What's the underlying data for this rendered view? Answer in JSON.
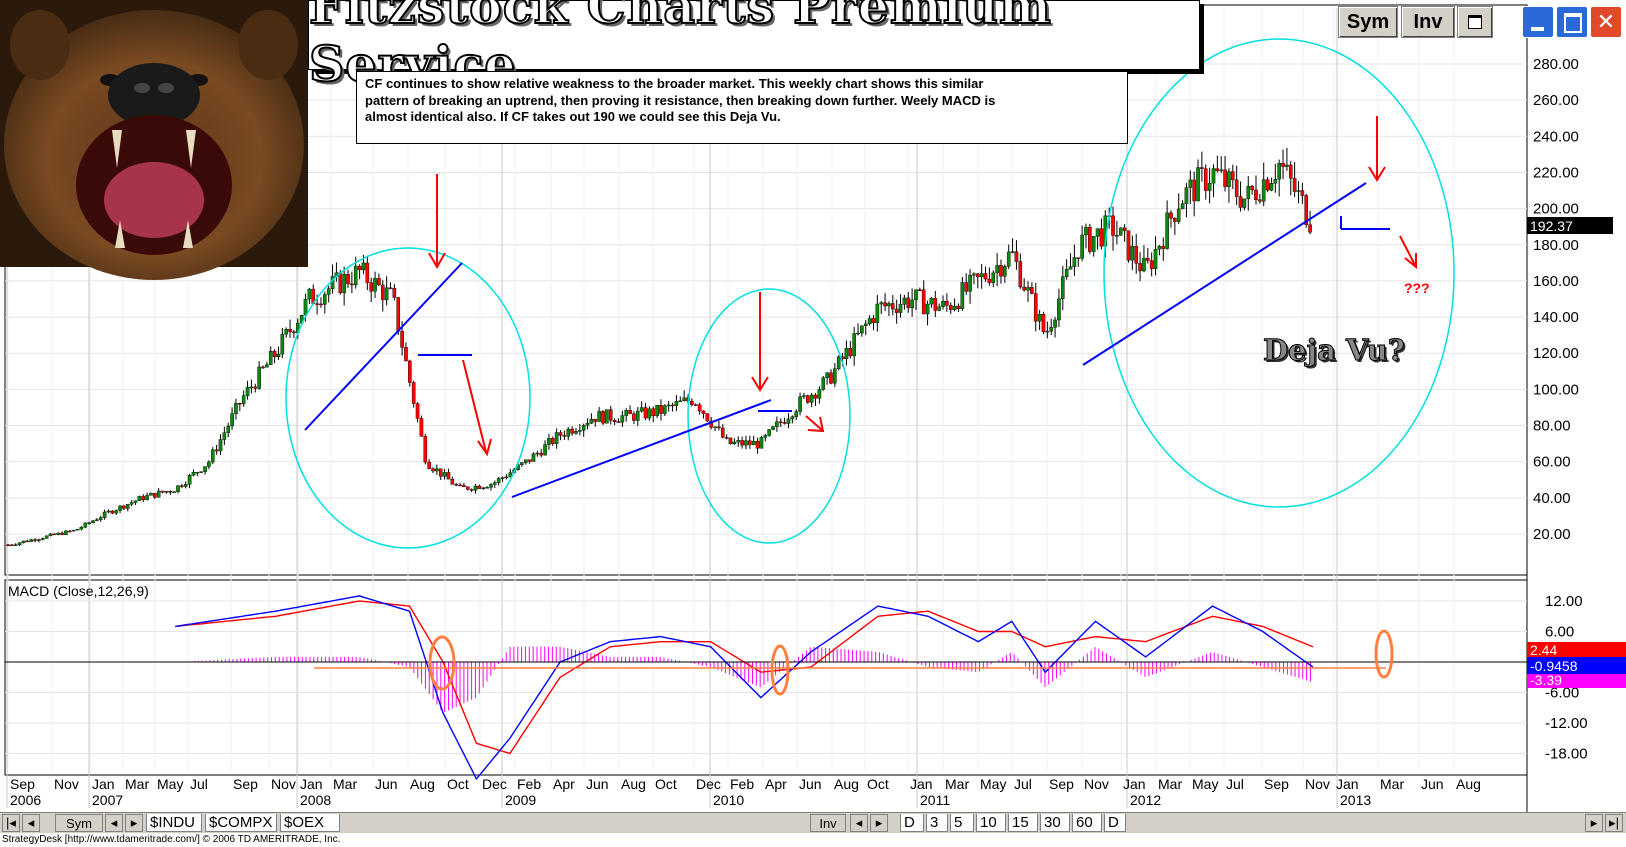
{
  "banner": {
    "title": "Fitzstock Charts Premium Service"
  },
  "note": {
    "lines": [
      "CF continues to show relative weakness to the broader market.   This weekly chart shows this similar",
      "pattern of breaking an uptrend, then proving it resistance, then breaking down further.   Weely MACD is",
      "almost identical also.    If CF takes out 190 we could see this Deja Vu."
    ]
  },
  "annotations": {
    "deja_vu": "Deja Vu?",
    "question": "???"
  },
  "toolbar": {
    "sym_label": "Sym",
    "inv_label": "Inv"
  },
  "image": {
    "subject": "roaring-bear"
  },
  "colors": {
    "bullish": "#0a8a0a",
    "bearish": "#ff0000",
    "trendline": "#0000ff",
    "circle": "#00e0e0",
    "arrow": "#ff0000",
    "macd_line": "#0000ff",
    "signal_line": "#ff0000",
    "histogram": "#ff00ff",
    "price_box": "#000000"
  },
  "chart_data": [
    {
      "type": "line",
      "name": "price",
      "title": "",
      "ylim": [
        10,
        295
      ],
      "yticks": [
        "280.00",
        "260.00",
        "240.00",
        "220.00",
        "200.00",
        "180.00",
        "160.00",
        "140.00",
        "120.00",
        "100.00",
        "80.00",
        "60.00",
        "40.00",
        "20.00"
      ],
      "last_price": "192.37",
      "x_month_labels": [
        "Sep",
        "Nov",
        "Jan",
        "Mar",
        "May",
        "Jul",
        "Sep",
        "Nov",
        "Jan",
        "Mar",
        "Jun",
        "Aug",
        "Oct",
        "Dec",
        "Feb",
        "Apr",
        "Jun",
        "Aug",
        "Oct",
        "Dec",
        "Feb",
        "Apr",
        "Jun",
        "Aug",
        "Oct",
        "Jan",
        "Mar",
        "May",
        "Jul",
        "Sep",
        "Nov",
        "Jan",
        "Mar",
        "May",
        "Jul",
        "Sep",
        "Nov",
        "Jan",
        "Mar",
        "Jun",
        "Aug",
        "Oct"
      ],
      "x_year_labels": [
        "2006",
        "2007",
        "2008",
        "2009",
        "2010",
        "2011",
        "2012",
        "2013"
      ],
      "x": [
        "2006-09",
        "2006-11",
        "2007-01",
        "2007-03",
        "2007-05",
        "2007-07",
        "2007-09",
        "2007-11",
        "2008-01",
        "2008-03",
        "2008-06",
        "2008-08",
        "2008-10",
        "2008-12",
        "2009-02",
        "2009-04",
        "2009-06",
        "2009-08",
        "2009-10",
        "2009-12",
        "2010-02",
        "2010-04",
        "2010-06",
        "2010-08",
        "2010-10",
        "2011-01",
        "2011-03",
        "2011-05",
        "2011-07",
        "2011-09",
        "2011-11",
        "2012-01",
        "2012-03",
        "2012-05",
        "2012-07",
        "2012-09",
        "2012-11",
        "2013-01",
        "2013-03"
      ],
      "values": [
        14,
        18,
        22,
        32,
        40,
        45,
        60,
        95,
        120,
        150,
        165,
        150,
        60,
        45,
        48,
        60,
        75,
        85,
        85,
        88,
        95,
        70,
        70,
        90,
        105,
        145,
        150,
        145,
        160,
        175,
        130,
        180,
        190,
        165,
        205,
        220,
        205,
        225,
        192
      ]
    },
    {
      "type": "line",
      "name": "MACD",
      "title": "MACD (Close,12,26,9)",
      "ylim": [
        -23,
        14
      ],
      "yticks": [
        "12.00",
        "6.00",
        "-6.00",
        "-12.00",
        "-18.00"
      ],
      "readouts": [
        "2.44",
        "-0.9458",
        "-3.39"
      ],
      "x": [
        "2007-07",
        "2008-01",
        "2008-06",
        "2008-09",
        "2008-11",
        "2009-01",
        "2009-03",
        "2009-06",
        "2009-09",
        "2009-12",
        "2010-03",
        "2010-06",
        "2010-09",
        "2011-01",
        "2011-04",
        "2011-07",
        "2011-09",
        "2011-11",
        "2012-02",
        "2012-05",
        "2012-09",
        "2012-12",
        "2013-03"
      ],
      "series": [
        {
          "name": "MACD",
          "values": [
            7,
            10,
            13,
            10,
            -10,
            -23,
            -15,
            0,
            4,
            5,
            3,
            -7,
            2,
            11,
            9,
            4,
            8,
            -2,
            8,
            1,
            11,
            6,
            -1
          ]
        },
        {
          "name": "Signal",
          "values": [
            7,
            9,
            12,
            11,
            0,
            -16,
            -18,
            -3,
            3,
            4,
            4,
            -2,
            -1,
            9,
            10,
            6,
            6,
            3,
            5,
            4,
            9,
            7,
            3
          ]
        },
        {
          "name": "Histogram",
          "values": [
            0,
            1,
            1,
            -1,
            -10,
            -7,
            3,
            3,
            1,
            1,
            -1,
            -5,
            3,
            2,
            -1,
            -2,
            2,
            -5,
            3,
            -3,
            2,
            -1,
            -4
          ]
        }
      ]
    }
  ],
  "bottom": {
    "tabs": [
      "$INDU",
      "$COMPX",
      "$OEX"
    ],
    "sym": "Sym",
    "inv": "Inv",
    "intervals": [
      "D",
      "3",
      "5",
      "10",
      "15",
      "30",
      "60",
      "D"
    ]
  },
  "status": {
    "text": "StrategyDesk [http://www.tdameritrade.com/] © 2006 TD AMERITRADE, Inc."
  }
}
